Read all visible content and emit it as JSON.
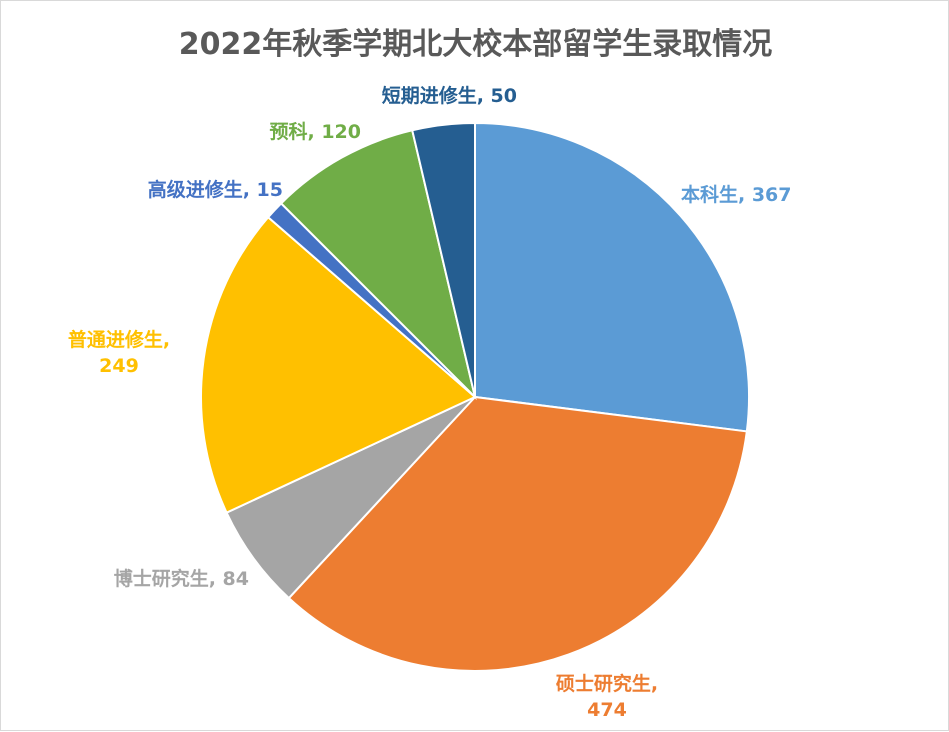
{
  "chart_data": {
    "type": "pie",
    "title": "2022年秋季学期北大校本部留学生录取情况",
    "categories": [
      "本科生",
      "硕士研究生",
      "博士研究生",
      "普通进修生",
      "高级进修生",
      "预科",
      "短期进修生"
    ],
    "values": [
      367,
      474,
      84,
      249,
      15,
      120,
      50
    ],
    "colors": [
      "#5b9bd5",
      "#ed7d31",
      "#a5a5a5",
      "#ffc000",
      "#4472c4",
      "#70ad47",
      "#255e91"
    ],
    "data_labels": [
      [
        "本科生, 367"
      ],
      [
        "硕士研究生,",
        "474"
      ],
      [
        "博士研究生, 84"
      ],
      [
        "普通进修生,",
        "249"
      ],
      [
        "高级进修生, 15"
      ],
      [
        "预科, 120"
      ],
      [
        "短期进修生, 50"
      ]
    ],
    "start_angle_deg": 0,
    "direction": "clockwise",
    "legend": "none"
  }
}
